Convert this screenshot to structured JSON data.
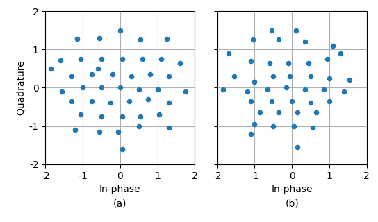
{
  "chart_data": [
    {
      "type": "scatter",
      "title": "(a)",
      "xlabel": "In-phase",
      "ylabel": "Quadrature",
      "x": [
        -1.15,
        -0.55,
        0.0,
        0.55,
        1.25,
        -1.6,
        -1.05,
        -0.5,
        0.05,
        0.6,
        1.1,
        1.6,
        -1.85,
        -1.3,
        -0.75,
        -0.2,
        0.3,
        0.8,
        1.3,
        -1.55,
        -1.0,
        -0.5,
        0.0,
        0.5,
        1.0,
        1.75,
        -1.3,
        -0.75,
        -0.25,
        0.25,
        0.75,
        1.3,
        -1.05,
        -0.5,
        0.05,
        0.55,
        1.05,
        -1.2,
        -0.55,
        -0.05,
        0.5,
        1.3,
        0.05,
        -0.6
      ],
      "values": [
        1.28,
        1.3,
        1.5,
        1.25,
        1.28,
        0.72,
        0.75,
        0.75,
        0.75,
        0.75,
        0.75,
        0.65,
        0.5,
        0.3,
        0.35,
        0.35,
        0.3,
        0.35,
        0.3,
        -0.1,
        0.0,
        0.0,
        0.0,
        -0.05,
        -0.05,
        -0.1,
        -0.35,
        -0.35,
        -0.4,
        -0.35,
        -0.3,
        -0.4,
        -0.7,
        -0.75,
        -0.75,
        -0.75,
        -0.7,
        -1.1,
        -1.15,
        -1.15,
        -1.0,
        -1.05,
        -1.6,
        0.5
      ],
      "xlim": [
        -2,
        2
      ],
      "ylim": [
        -2,
        2
      ],
      "xticks": [
        -2,
        -1,
        0,
        1,
        2
      ],
      "yticks": [
        -2,
        -1,
        0,
        1,
        2
      ],
      "grid": true
    },
    {
      "type": "scatter",
      "title": "(b)",
      "xlabel": "In-phase",
      "x": [
        -0.55,
        0.1,
        -1.05,
        -0.35,
        0.35,
        1.1,
        -1.7,
        -1.1,
        -0.6,
        -0.1,
        0.45,
        0.95,
        -1.55,
        -1.0,
        -0.5,
        -0.05,
        0.5,
        1.0,
        1.55,
        -1.85,
        -1.2,
        -0.65,
        -0.15,
        0.35,
        0.85,
        1.4,
        -1.1,
        -0.55,
        0.0,
        0.5,
        1.0,
        -0.85,
        -0.35,
        0.15,
        0.65,
        -1.0,
        -0.5,
        0.05,
        0.55,
        -1.1,
        0.15,
        1.3
      ],
      "values": [
        1.5,
        1.5,
        1.25,
        1.25,
        1.2,
        1.1,
        0.9,
        0.7,
        0.65,
        0.65,
        0.65,
        0.75,
        0.3,
        0.15,
        0.3,
        0.3,
        0.3,
        0.25,
        0.2,
        -0.05,
        -0.1,
        -0.05,
        0.0,
        -0.05,
        -0.05,
        -0.1,
        -0.35,
        -0.35,
        -0.35,
        -0.4,
        -0.35,
        -0.65,
        -0.65,
        -0.65,
        -0.65,
        -0.95,
        -1.0,
        -1.0,
        -1.05,
        -1.2,
        -1.55,
        0.9
      ],
      "xlim": [
        -2,
        2
      ],
      "ylim": [
        -2,
        2
      ],
      "xticks": [
        -2,
        -1,
        0,
        1,
        2
      ],
      "yticks": [
        -2,
        -1,
        0,
        1,
        2
      ],
      "grid": true,
      "tick_labels": "x"
    }
  ]
}
